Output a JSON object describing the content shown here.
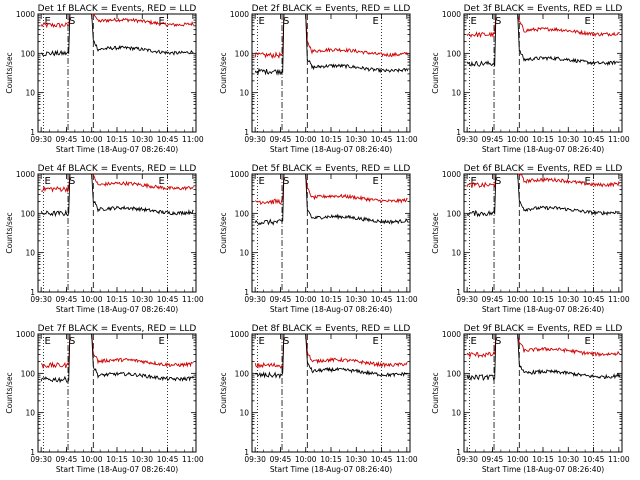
{
  "chart_data": {
    "type": "line",
    "layout": "3x3 grid of panels",
    "ylabel": "Counts/sec",
    "xlabel": "Start Time (18-Aug-07 08:26:40)",
    "x_tick_labels": [
      "09:30",
      "09:45",
      "10:00",
      "10:15",
      "10:30",
      "10:45",
      "11:00"
    ],
    "x_tick_labels_last_col": [
      "09:30",
      "09:45",
      "10:00",
      "10:15",
      "10:30",
      "10:45",
      "11:00"
    ],
    "y_tick_labels": [
      "1",
      "10",
      "100",
      "1000"
    ],
    "y_scale": "log",
    "ylim": [
      1,
      1000
    ],
    "marker_labels": {
      "start": "E",
      "saa": "S",
      "end": "E"
    },
    "series_colors": {
      "Events": "#000000",
      "LLD": "#d00000"
    },
    "panels": [
      {
        "title": "Det  1f  BLACK = Events, RED = LLD",
        "events": 100,
        "lld": 520
      },
      {
        "title": "Det  2f  BLACK = Events, RED = LLD",
        "events": 35,
        "lld": 90
      },
      {
        "title": "Det  3f  BLACK = Events, RED = LLD",
        "events": 55,
        "lld": 300
      },
      {
        "title": "Det  4f  BLACK = Events, RED = LLD",
        "events": 100,
        "lld": 420
      },
      {
        "title": "Det  5f  BLACK = Events, RED = LLD",
        "events": 60,
        "lld": 200
      },
      {
        "title": "Det  6f  BLACK = Events, RED = LLD",
        "events": 100,
        "lld": 520
      },
      {
        "title": "Det  7f  BLACK = Events, RED = LLD",
        "events": 70,
        "lld": 160
      },
      {
        "title": "Det  8f  BLACK = Events, RED = LLD",
        "events": 90,
        "lld": 160
      },
      {
        "title": "Det  9f  BLACK = Events, RED = LLD",
        "events": 80,
        "lld": 300
      }
    ]
  }
}
